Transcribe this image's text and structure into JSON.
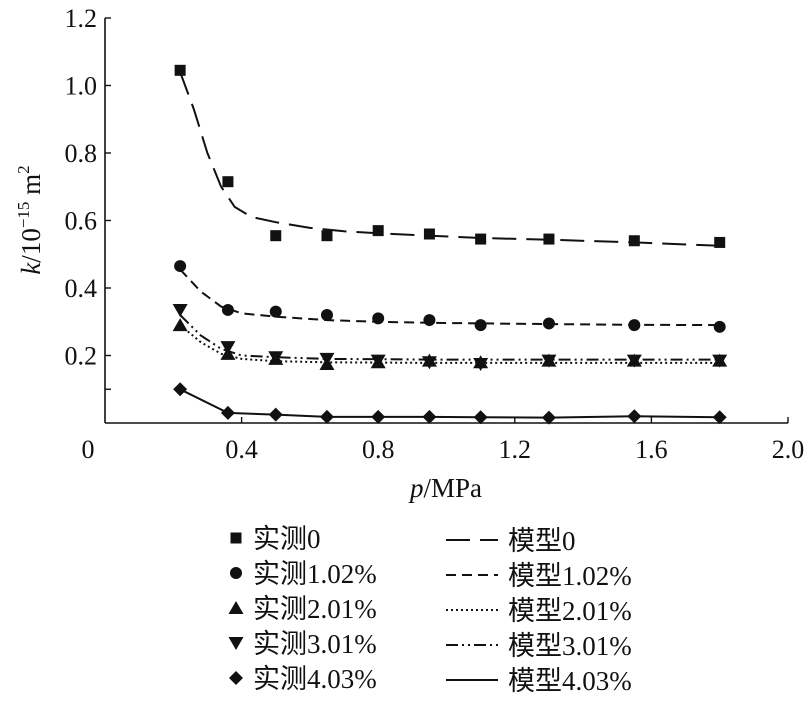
{
  "chart_data": {
    "type": "line",
    "title": "",
    "xlabel_var": "p",
    "xlabel_unit": "/MPa",
    "ylabel_var": "k",
    "ylabel_unit_base": "/10",
    "ylabel_unit_exp": "−15",
    "ylabel_unit_tail": " m",
    "ylabel_unit_sq": "2",
    "xlim": [
      0,
      2.0
    ],
    "ylim": [
      0,
      1.2
    ],
    "x_ticks": [
      "0",
      "0.4",
      "0.8",
      "1.2",
      "1.6",
      "2.0"
    ],
    "x_tick_values": [
      0,
      0.4,
      0.8,
      1.2,
      1.6,
      2.0
    ],
    "y_ticks": [
      "0.2",
      "0.4",
      "0.6",
      "0.8",
      "1.0",
      "1.2"
    ],
    "y_tick_values": [
      0.2,
      0.4,
      0.6,
      0.8,
      1.0,
      1.2
    ],
    "grid": false,
    "legend_position": "bottom",
    "measured_series": [
      {
        "name": "实测0",
        "marker": "square",
        "x": [
          0.22,
          0.36,
          0.5,
          0.65,
          0.8,
          0.95,
          1.1,
          1.3,
          1.55,
          1.8
        ],
        "y": [
          1.045,
          0.715,
          0.555,
          0.555,
          0.57,
          0.56,
          0.545,
          0.545,
          0.54,
          0.535
        ]
      },
      {
        "name": "实测1.02%",
        "marker": "circle",
        "x": [
          0.22,
          0.36,
          0.5,
          0.65,
          0.8,
          0.95,
          1.1,
          1.3,
          1.55,
          1.8
        ],
        "y": [
          0.465,
          0.335,
          0.33,
          0.32,
          0.31,
          0.305,
          0.29,
          0.295,
          0.29,
          0.285
        ]
      },
      {
        "name": "实测2.01%",
        "marker": "triangle-up",
        "x": [
          0.22,
          0.36,
          0.5,
          0.65,
          0.8,
          0.95,
          1.1,
          1.3,
          1.55,
          1.8
        ],
        "y": [
          0.29,
          0.205,
          0.19,
          0.175,
          0.18,
          0.185,
          0.18,
          0.185,
          0.185,
          0.185
        ]
      },
      {
        "name": "实测3.01%",
        "marker": "triangle-down",
        "x": [
          0.22,
          0.36,
          0.5,
          0.65,
          0.8,
          0.95,
          1.1,
          1.3,
          1.55,
          1.8
        ],
        "y": [
          0.335,
          0.225,
          0.195,
          0.19,
          0.185,
          0.18,
          0.175,
          0.185,
          0.185,
          0.185
        ]
      },
      {
        "name": "实测4.03%",
        "marker": "diamond",
        "x": [
          0.22,
          0.36,
          0.5,
          0.65,
          0.8,
          0.95,
          1.1,
          1.3,
          1.55,
          1.8
        ],
        "y": [
          0.1,
          0.03,
          0.025,
          0.018,
          0.018,
          0.018,
          0.017,
          0.016,
          0.02,
          0.017
        ]
      }
    ],
    "model_series": [
      {
        "name": "模型0",
        "dash": "24,10",
        "x": [
          0.22,
          0.26,
          0.3,
          0.34,
          0.38,
          0.43,
          0.5,
          0.6,
          0.7,
          0.8,
          0.95,
          1.1,
          1.3,
          1.55,
          1.8
        ],
        "y": [
          1.04,
          0.93,
          0.8,
          0.7,
          0.64,
          0.61,
          0.595,
          0.578,
          0.568,
          0.562,
          0.555,
          0.548,
          0.543,
          0.535,
          0.525
        ]
      },
      {
        "name": "模型1.02%",
        "dash": "10,6",
        "x": [
          0.22,
          0.28,
          0.34,
          0.4,
          0.5,
          0.65,
          0.8,
          0.95,
          1.1,
          1.3,
          1.55,
          1.8
        ],
        "y": [
          0.455,
          0.39,
          0.345,
          0.325,
          0.315,
          0.305,
          0.3,
          0.297,
          0.295,
          0.293,
          0.291,
          0.29
        ]
      },
      {
        "name": "模型2.01%",
        "dash": "2,3",
        "x": [
          0.22,
          0.28,
          0.34,
          0.4,
          0.5,
          0.65,
          0.8,
          0.95,
          1.1,
          1.3,
          1.55,
          1.8
        ],
        "y": [
          0.29,
          0.24,
          0.205,
          0.19,
          0.183,
          0.18,
          0.179,
          0.178,
          0.178,
          0.178,
          0.178,
          0.178
        ]
      },
      {
        "name": "模型3.01%",
        "dash": "12,4,2,4,2,4",
        "x": [
          0.22,
          0.28,
          0.34,
          0.4,
          0.5,
          0.65,
          0.8,
          0.95,
          1.1,
          1.3,
          1.55,
          1.8
        ],
        "y": [
          0.32,
          0.26,
          0.22,
          0.2,
          0.195,
          0.19,
          0.189,
          0.188,
          0.188,
          0.188,
          0.188,
          0.188
        ]
      },
      {
        "name": "模型4.03%",
        "dash": "",
        "x": [
          0.22,
          0.36,
          0.5,
          0.65,
          0.8,
          0.95,
          1.1,
          1.3,
          1.55,
          1.8
        ],
        "y": [
          0.1,
          0.03,
          0.025,
          0.018,
          0.018,
          0.018,
          0.017,
          0.016,
          0.02,
          0.017
        ]
      }
    ]
  }
}
